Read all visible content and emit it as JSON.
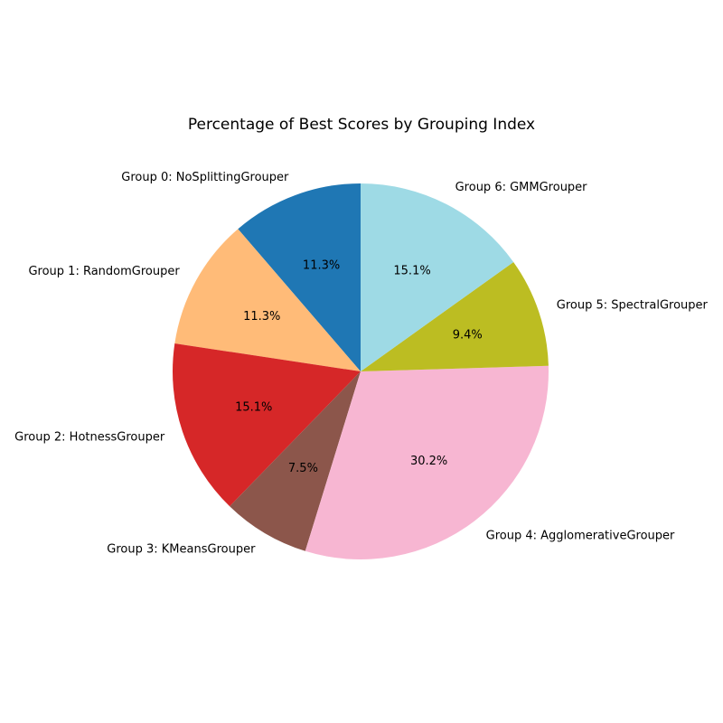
{
  "chart_data": {
    "type": "pie",
    "title": "Percentage of Best Scores by Grouping Index",
    "start_angle_deg": 90,
    "direction": "counterclockwise",
    "slices": [
      {
        "label": "Group 0: NoSplittingGrouper",
        "value": 11.3,
        "pct_label": "11.3%",
        "color": "#1f77b4"
      },
      {
        "label": "Group 1: RandomGrouper",
        "value": 11.3,
        "pct_label": "11.3%",
        "color": "#ffbb78"
      },
      {
        "label": "Group 2: HotnessGrouper",
        "value": 15.1,
        "pct_label": "15.1%",
        "color": "#d62728"
      },
      {
        "label": "Group 3: KMeansGrouper",
        "value": 7.5,
        "pct_label": "7.5%",
        "color": "#8c564b"
      },
      {
        "label": "Group 4: AgglomerativeGrouper",
        "value": 30.2,
        "pct_label": "30.2%",
        "color": "#f7b6d2"
      },
      {
        "label": "Group 5: SpectralGrouper",
        "value": 9.4,
        "pct_label": "9.4%",
        "color": "#bcbd22"
      },
      {
        "label": "Group 6: GMMGrouper",
        "value": 15.1,
        "pct_label": "15.1%",
        "color": "#9edae5"
      }
    ]
  }
}
